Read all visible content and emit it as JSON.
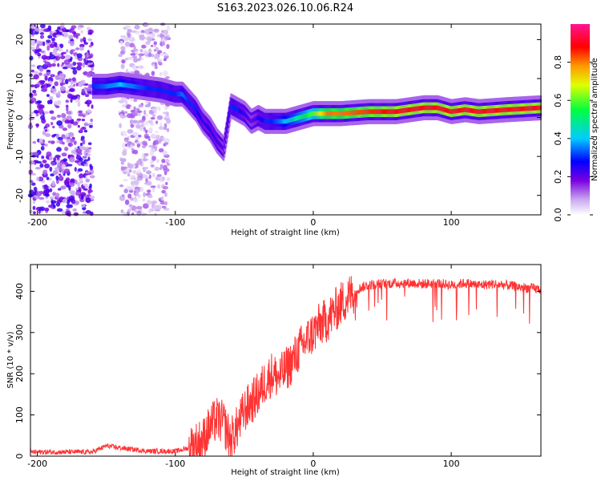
{
  "title": "S163.2023.026.10.06.R24",
  "chart_data": [
    {
      "type": "heatmap",
      "xlabel": "Height of straight line (km)",
      "ylabel": "Frequency (Hz)",
      "xlim": [
        -205,
        165
      ],
      "ylim": [
        -25,
        24
      ],
      "xticks": [
        -200,
        -100,
        0,
        100
      ],
      "yticks": [
        -20,
        -10,
        0,
        10,
        20
      ],
      "xtick_labels": [
        "-200",
        "-100",
        "0",
        "100"
      ],
      "ytick_labels": [
        "-20",
        "-10",
        "0",
        "10",
        "20"
      ],
      "colorbar": {
        "label": "Normalized spectral amplitude",
        "range": [
          0,
          1
        ],
        "ticks": [
          "0.0",
          "0.2",
          "0.4",
          "0.6",
          "0.8"
        ],
        "tick_values": [
          0,
          0.2,
          0.4,
          0.6,
          0.8
        ],
        "colormap": "rainbow (white-violet-blue-cyan-green-yellow-red-pink)"
      },
      "ridge": {
        "x": [
          -160,
          -150,
          -140,
          -130,
          -120,
          -110,
          -100,
          -95,
          -90,
          -85,
          -80,
          -75,
          -70,
          -65,
          -60,
          -55,
          -50,
          -45,
          -40,
          -35,
          -30,
          -20,
          -10,
          0,
          10,
          20,
          40,
          60,
          80,
          90,
          100,
          110,
          120,
          140,
          165
        ],
        "freq": [
          8,
          8,
          8.5,
          8,
          7.5,
          7,
          6,
          6,
          4,
          2,
          -1,
          -3,
          -6,
          -8,
          3,
          2,
          1,
          -1,
          0,
          -1,
          -1,
          -1,
          0,
          1,
          1,
          1,
          1.5,
          1.5,
          2.5,
          2.5,
          1.5,
          2,
          1.5,
          2,
          2.5
        ],
        "amplitude": [
          0.3,
          0.35,
          0.4,
          0.35,
          0.3,
          0.3,
          0.3,
          0.35,
          0.3,
          0.3,
          0.25,
          0.25,
          0.25,
          0.2,
          0.3,
          0.3,
          0.25,
          0.2,
          0.25,
          0.3,
          0.3,
          0.4,
          0.5,
          0.6,
          0.8,
          0.8,
          0.85,
          0.9,
          0.9,
          0.9,
          0.9,
          0.9,
          0.9,
          0.9,
          0.9
        ]
      },
      "noise_bands": [
        {
          "x_range": [
            -205,
            -160
          ],
          "freq_range": [
            -25,
            24
          ],
          "amplitude": 0.15
        },
        {
          "x_range": [
            -140,
            -105
          ],
          "freq_range": [
            -25,
            24
          ],
          "amplitude": 0.08
        }
      ]
    },
    {
      "type": "line",
      "xlabel": "Height of straight line (km)",
      "ylabel": "SNR (10 * v/v)",
      "xlim": [
        -205,
        165
      ],
      "ylim": [
        0,
        465
      ],
      "xticks": [
        -200,
        -100,
        0,
        100
      ],
      "yticks": [
        0,
        100,
        200,
        300,
        400
      ],
      "xtick_labels": [
        "-200",
        "-100",
        "0",
        "100"
      ],
      "ytick_labels": [
        "0",
        "100",
        "200",
        "300",
        "400"
      ],
      "line_color": "#ff3333",
      "series": [
        {
          "x": [
            -205,
            -180,
            -160,
            -150,
            -140,
            -120,
            -100,
            -90,
            -80,
            -75,
            -70,
            -65,
            -60,
            -55,
            -50,
            -45,
            -40,
            -35,
            -30,
            -25,
            -20,
            -15,
            -10,
            -5,
            0,
            5,
            10,
            15,
            20,
            25,
            30,
            35,
            40,
            50,
            60,
            70,
            80,
            90,
            100,
            110,
            120,
            130,
            140,
            150,
            165
          ],
          "y": [
            10,
            10,
            10,
            25,
            20,
            12,
            12,
            20,
            40,
            70,
            90,
            80,
            40,
            70,
            110,
            130,
            150,
            180,
            200,
            190,
            210,
            230,
            260,
            280,
            300,
            320,
            330,
            350,
            370,
            385,
            400,
            410,
            415,
            418,
            420,
            420,
            418,
            420,
            415,
            420,
            415,
            418,
            415,
            410,
            405
          ]
        }
      ]
    }
  ]
}
